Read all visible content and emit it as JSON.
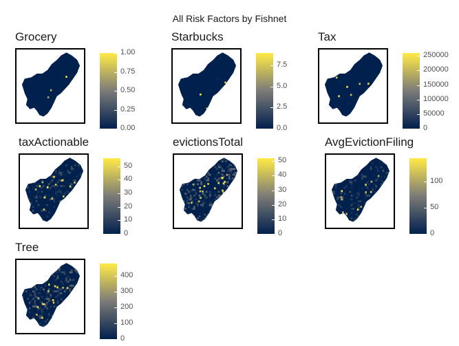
{
  "figure": {
    "title": "All Risk Factors by Fishnet"
  },
  "colors": {
    "low": "#00204D",
    "mid": "#7C7B78",
    "high": "#FFEA46",
    "frame": "#000000"
  },
  "chart_data": [
    {
      "type": "heatmap",
      "title": "Grocery",
      "legend_ticks": [
        "1.00",
        "0.75",
        "0.50",
        "0.25",
        "0.00"
      ],
      "legend_tick_values": [
        1,
        0.75,
        0.5,
        0.25,
        0
      ],
      "range": [
        0,
        1
      ]
    },
    {
      "type": "heatmap",
      "title": "Starbucks",
      "legend_ticks": [
        "7.5",
        "5.0",
        "2.5",
        "0.0"
      ],
      "legend_tick_values": [
        7.5,
        5,
        2.5,
        0
      ],
      "range": [
        0,
        9
      ]
    },
    {
      "type": "heatmap",
      "title": "Tax",
      "legend_ticks": [
        "250000",
        "200000",
        "150000",
        "100000",
        "50000",
        "0"
      ],
      "legend_tick_values": [
        250000,
        200000,
        150000,
        100000,
        50000,
        0
      ],
      "range": [
        0,
        260000
      ]
    },
    {
      "type": "heatmap",
      "title": "taxActionable",
      "legend_ticks": [
        "50",
        "40",
        "30",
        "20",
        "10",
        "0"
      ],
      "legend_tick_values": [
        50,
        40,
        30,
        20,
        10,
        0
      ],
      "range": [
        0,
        56
      ]
    },
    {
      "type": "heatmap",
      "title": "evictionsTotal",
      "legend_ticks": [
        "50",
        "40",
        "30",
        "20",
        "10",
        "0"
      ],
      "legend_tick_values": [
        50,
        40,
        30,
        20,
        10,
        0
      ],
      "range": [
        0,
        52
      ]
    },
    {
      "type": "heatmap",
      "title": "AvgEvictionFiling",
      "legend_ticks": [
        "100",
        "50",
        "0"
      ],
      "legend_tick_values": [
        100,
        50,
        0
      ],
      "range": [
        0,
        145
      ]
    },
    {
      "type": "heatmap",
      "title": "Tree",
      "legend_ticks": [
        "400",
        "300",
        "200",
        "100",
        "0"
      ],
      "legend_tick_values": [
        400,
        300,
        200,
        100,
        0
      ],
      "range": [
        0,
        480
      ]
    }
  ]
}
